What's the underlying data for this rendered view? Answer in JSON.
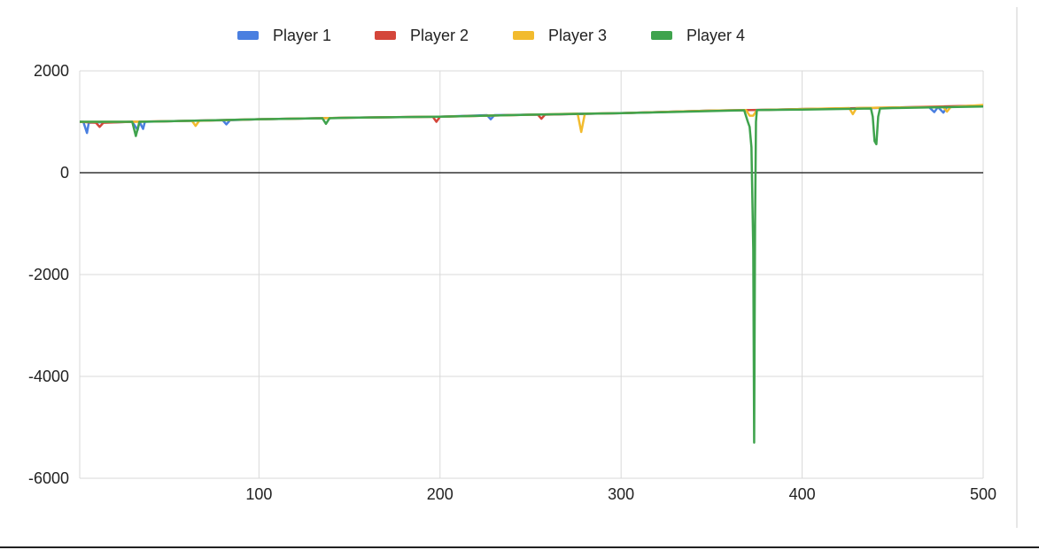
{
  "chart_data": {
    "type": "area",
    "title": "",
    "xlabel": "",
    "ylabel": "",
    "xlim": [
      1,
      500
    ],
    "ylim": [
      -6000,
      2000
    ],
    "x_ticks": [
      100,
      200,
      300,
      400,
      500
    ],
    "x_tick_labels": [
      "100",
      "200",
      "300",
      "400",
      "500"
    ],
    "y_ticks": [
      2000,
      0,
      -2000,
      -4000,
      -6000
    ],
    "y_tick_labels": [
      "2000",
      "0",
      "-2000",
      "-4000",
      "-6000"
    ],
    "grid": true,
    "legend_position": "top-center",
    "series": [
      {
        "name": "Player 1",
        "color": "#4a7fe0",
        "points": [
          [
            1,
            1000
          ],
          [
            3,
            1000
          ],
          [
            5,
            780
          ],
          [
            6,
            980
          ],
          [
            10,
            990
          ],
          [
            20,
            990
          ],
          [
            30,
            1000
          ],
          [
            33,
            840
          ],
          [
            34,
            1000
          ],
          [
            36,
            860
          ],
          [
            37,
            1000
          ],
          [
            50,
            1010
          ],
          [
            80,
            1030
          ],
          [
            82,
            950
          ],
          [
            84,
            1030
          ],
          [
            100,
            1050
          ],
          [
            150,
            1080
          ],
          [
            200,
            1100
          ],
          [
            226,
            1130
          ],
          [
            228,
            1050
          ],
          [
            230,
            1130
          ],
          [
            250,
            1140
          ],
          [
            300,
            1170
          ],
          [
            350,
            1220
          ],
          [
            372,
            1230
          ],
          [
            374,
            1230
          ],
          [
            400,
            1250
          ],
          [
            440,
            1270
          ],
          [
            450,
            1280
          ],
          [
            470,
            1290
          ],
          [
            473,
            1190
          ],
          [
            475,
            1290
          ],
          [
            478,
            1180
          ],
          [
            480,
            1290
          ],
          [
            500,
            1320
          ]
        ]
      },
      {
        "name": "Player 2",
        "color": "#d4463a",
        "points": [
          [
            1,
            1000
          ],
          [
            10,
            980
          ],
          [
            12,
            900
          ],
          [
            14,
            980
          ],
          [
            30,
            1000
          ],
          [
            50,
            1010
          ],
          [
            100,
            1050
          ],
          [
            150,
            1080
          ],
          [
            196,
            1100
          ],
          [
            198,
            1000
          ],
          [
            200,
            1100
          ],
          [
            250,
            1140
          ],
          [
            254,
            1140
          ],
          [
            256,
            1060
          ],
          [
            258,
            1140
          ],
          [
            300,
            1170
          ],
          [
            350,
            1220
          ],
          [
            372,
            1230
          ],
          [
            400,
            1250
          ],
          [
            450,
            1280
          ],
          [
            500,
            1320
          ]
        ]
      },
      {
        "name": "Player 3",
        "color": "#f2bb2e",
        "points": [
          [
            1,
            1000
          ],
          [
            30,
            1000
          ],
          [
            50,
            1010
          ],
          [
            63,
            1020
          ],
          [
            65,
            920
          ],
          [
            67,
            1020
          ],
          [
            100,
            1050
          ],
          [
            150,
            1080
          ],
          [
            200,
            1100
          ],
          [
            250,
            1140
          ],
          [
            276,
            1160
          ],
          [
            278,
            800
          ],
          [
            280,
            1160
          ],
          [
            300,
            1170
          ],
          [
            350,
            1220
          ],
          [
            369,
            1230
          ],
          [
            371,
            1120
          ],
          [
            373,
            1120
          ],
          [
            375,
            1230
          ],
          [
            400,
            1250
          ],
          [
            426,
            1270
          ],
          [
            428,
            1150
          ],
          [
            430,
            1270
          ],
          [
            450,
            1280
          ],
          [
            478,
            1290
          ],
          [
            480,
            1200
          ],
          [
            482,
            1290
          ],
          [
            500,
            1330
          ]
        ]
      },
      {
        "name": "Player 4",
        "color": "#3fa34d",
        "points": [
          [
            1,
            1000
          ],
          [
            30,
            1000
          ],
          [
            32,
            720
          ],
          [
            34,
            1000
          ],
          [
            50,
            1010
          ],
          [
            100,
            1050
          ],
          [
            135,
            1070
          ],
          [
            137,
            960
          ],
          [
            139,
            1070
          ],
          [
            150,
            1080
          ],
          [
            200,
            1100
          ],
          [
            250,
            1140
          ],
          [
            300,
            1170
          ],
          [
            350,
            1210
          ],
          [
            368,
            1225
          ],
          [
            370,
            1000
          ],
          [
            371,
            900
          ],
          [
            372,
            500
          ],
          [
            373,
            -1500
          ],
          [
            373.5,
            -5300
          ],
          [
            374,
            -1000
          ],
          [
            374.5,
            1000
          ],
          [
            375,
            1230
          ],
          [
            400,
            1240
          ],
          [
            438,
            1260
          ],
          [
            439,
            1100
          ],
          [
            440,
            620
          ],
          [
            441,
            560
          ],
          [
            442,
            1100
          ],
          [
            443,
            1260
          ],
          [
            450,
            1270
          ],
          [
            500,
            1300
          ]
        ]
      }
    ]
  }
}
